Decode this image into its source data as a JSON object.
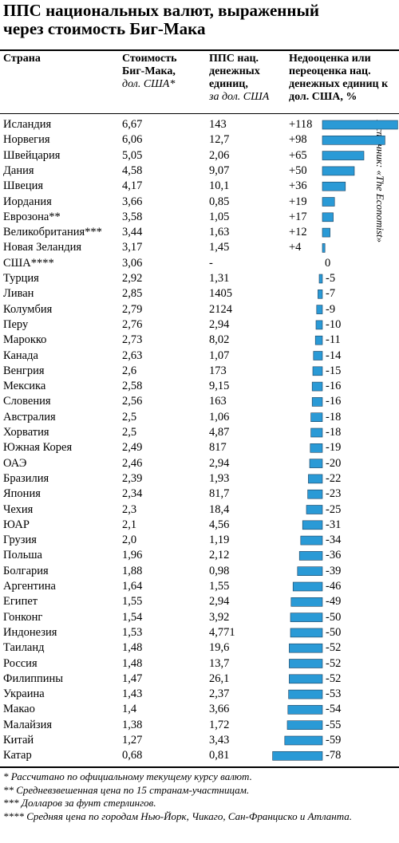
{
  "title": [
    "ППС национальных валют, выраженный",
    "через стоимость Биг-Мака"
  ],
  "headers": [
    {
      "bold": "Страна"
    },
    {
      "bold": "Стоимость Биг-Мака,",
      "italic": "дол. США*"
    },
    {
      "bold": "ППС нац. денежных единиц,",
      "italic": "за дол. США"
    },
    {
      "bold": "Недооценка или переоценка нац. денежных единиц к дол. США, %"
    }
  ],
  "bar_color": "#2a9ad6",
  "rows": [
    [
      "Исландия",
      "6,67",
      "143",
      118,
      "+118"
    ],
    [
      "Норвегия",
      "6,06",
      "12,7",
      98,
      "+98"
    ],
    [
      "Швейцария",
      "5,05",
      "2,06",
      65,
      "+65"
    ],
    [
      "Дания",
      "4,58",
      "9,07",
      50,
      "+50"
    ],
    [
      "Швеция",
      "4,17",
      "10,1",
      36,
      "+36"
    ],
    [
      "Иордания",
      "3,66",
      "0,85",
      19,
      "+19"
    ],
    [
      "Еврозона**",
      "3,58",
      "1,05",
      17,
      "+17"
    ],
    [
      "Великобритания***",
      "3,44",
      "1,63",
      12,
      "+12"
    ],
    [
      "Новая Зеландия",
      "3,17",
      "1,45",
      4,
      "+4"
    ],
    [
      "США****",
      "3,06",
      "-",
      0,
      "0"
    ],
    [
      "Турция",
      "2,92",
      "1,31",
      -5,
      "-5"
    ],
    [
      "Ливан",
      "2,85",
      "1405",
      -7,
      "-7"
    ],
    [
      "Колумбия",
      "2,79",
      "2124",
      -9,
      "-9"
    ],
    [
      "Перу",
      "2,76",
      "2,94",
      -10,
      "-10"
    ],
    [
      "Марокко",
      "2,73",
      "8,02",
      -11,
      "-11"
    ],
    [
      "Канада",
      "2,63",
      "1,07",
      -14,
      "-14"
    ],
    [
      "Венгрия",
      "2,6",
      "173",
      -15,
      "-15"
    ],
    [
      "Мексика",
      "2,58",
      "9,15",
      -16,
      "-16"
    ],
    [
      "Словения",
      "2,56",
      "163",
      -16,
      "-16"
    ],
    [
      "Австралия",
      "2,5",
      "1,06",
      -18,
      "-18"
    ],
    [
      "Хорватия",
      "2,5",
      "4,87",
      -18,
      "-18"
    ],
    [
      "Южная Корея",
      "2,49",
      "817",
      -19,
      "-19"
    ],
    [
      "ОАЭ",
      "2,46",
      "2,94",
      -20,
      "-20"
    ],
    [
      "Бразилия",
      "2,39",
      "1,93",
      -22,
      "-22"
    ],
    [
      "Япония",
      "2,34",
      "81,7",
      -23,
      "-23"
    ],
    [
      "Чехия",
      "2,3",
      "18,4",
      -25,
      "-25"
    ],
    [
      "ЮАР",
      "2,1",
      "4,56",
      -31,
      "-31"
    ],
    [
      "Грузия",
      "2,0",
      "1,19",
      -34,
      "-34"
    ],
    [
      "Польша",
      "1,96",
      "2,12",
      -36,
      "-36"
    ],
    [
      "Болгария",
      "1,88",
      "0,98",
      -39,
      "-39"
    ],
    [
      "Аргентина",
      "1,64",
      "1,55",
      -46,
      "-46"
    ],
    [
      "Египет",
      "1,55",
      "2,94",
      -49,
      "-49"
    ],
    [
      "Гонконг",
      "1,54",
      "3,92",
      -50,
      "-50"
    ],
    [
      "Индонезия",
      "1,53",
      "4,771",
      -50,
      "-50"
    ],
    [
      "Таиланд",
      "1,48",
      "19,6",
      -52,
      "-52"
    ],
    [
      "Россия",
      "1,48",
      "13,7",
      -52,
      "-52"
    ],
    [
      "Филиппины",
      "1,47",
      "26,1",
      -52,
      "-52"
    ],
    [
      "Украина",
      "1,43",
      "2,37",
      -53,
      "-53"
    ],
    [
      "Макао",
      "1,4",
      "3,66",
      -54,
      "-54"
    ],
    [
      "Малайзия",
      "1,38",
      "1,72",
      -55,
      "-55"
    ],
    [
      "Китай",
      "1,27",
      "3,43",
      -59,
      "-59"
    ],
    [
      "Катар",
      "0,68",
      "0,81",
      -78,
      "-78"
    ]
  ],
  "source": "Источник: «The Economist»",
  "footnotes": [
    "* Рассчитано по официальному текущему курсу валют.",
    "** Средневзвешенная цена по 15 странам-участницам.",
    "*** Долларов за фунт стерлингов.",
    "**** Средняя цена по городам Нью-Йорк, Чикаго, Сан-Франциско и Атланта."
  ]
}
